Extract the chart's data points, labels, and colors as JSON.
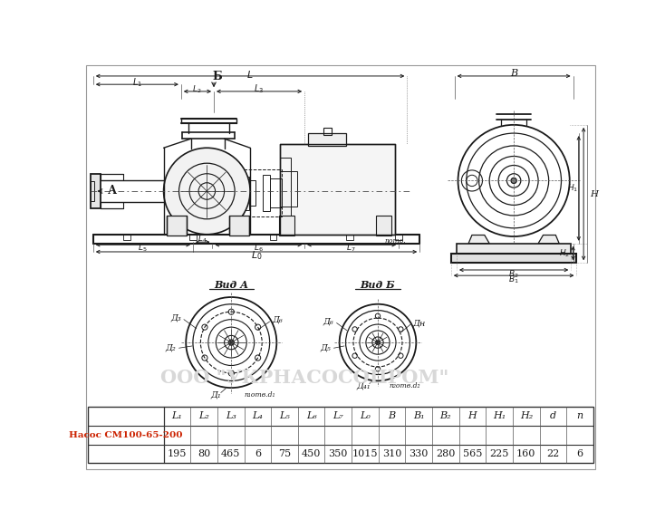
{
  "table_headers": [
    "L₁",
    "L₂",
    "L₃",
    "L₄",
    "L₅",
    "L₆",
    "L₇",
    "L₀",
    "B",
    "B₁",
    "B₂",
    "H",
    "H₁",
    "H₂",
    "d",
    "n"
  ],
  "table_values": [
    "195",
    "80",
    "465",
    "6",
    "75",
    "450",
    "350",
    "1015",
    "310",
    "330",
    "280",
    "565",
    "225",
    "160",
    "22",
    "6"
  ],
  "pump_label": "Насос СМ100-65-200",
  "watermark": "ООО \"УКРНАСОСОПРОМ\"",
  "bg_color": "#ffffff",
  "line_color": "#1a1a1a",
  "red_color": "#cc2200"
}
